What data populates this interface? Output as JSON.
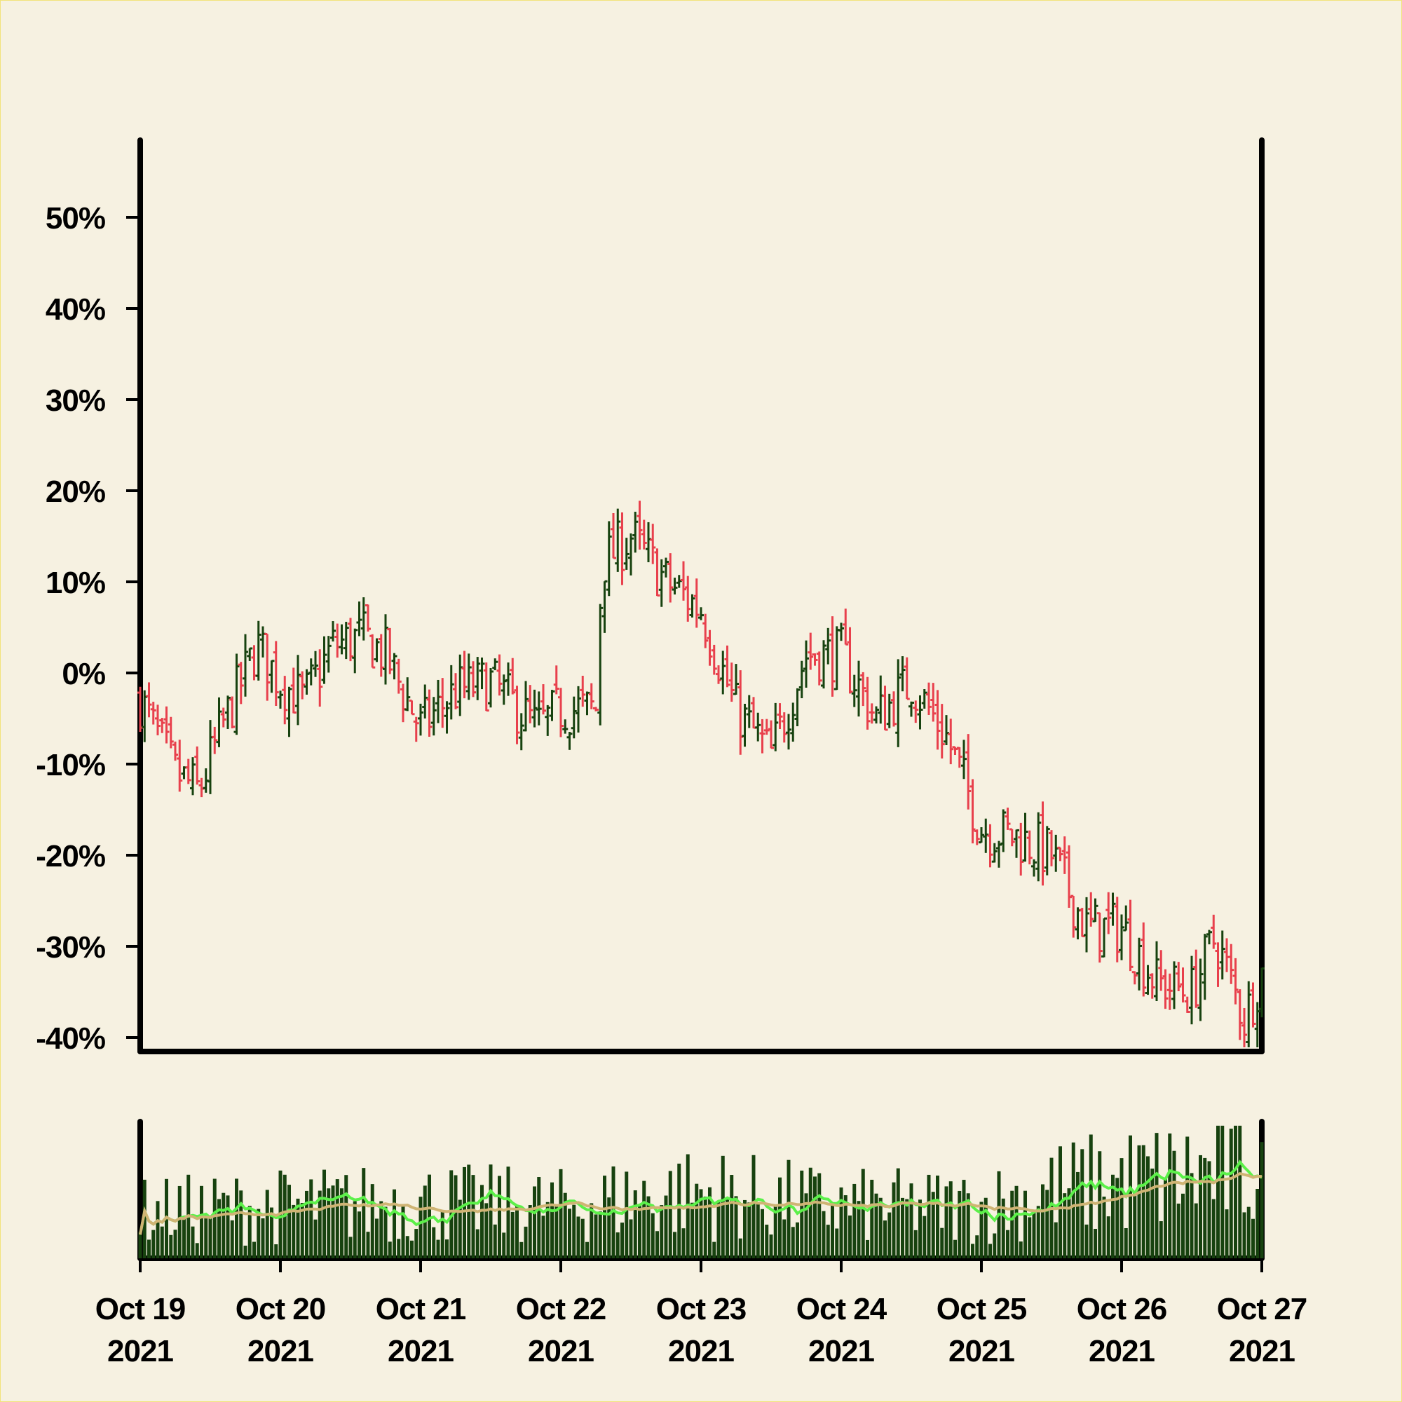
{
  "chart_data": [
    {
      "type": "ohlc",
      "title": "",
      "xlabel": "",
      "ylabel": "",
      "ylim": [
        -41.5,
        58.5
      ],
      "y_ticks": [
        "-40%",
        "-30%",
        "-20%",
        "-10%",
        "0%",
        "10%",
        "20%",
        "30%",
        "40%",
        "50%"
      ],
      "y_tick_values": [
        -40,
        -30,
        -20,
        -10,
        0,
        10,
        20,
        30,
        40,
        50
      ],
      "x_ticks": [
        {
          "date": "Oct 19",
          "year": "2021"
        },
        {
          "date": "Oct 20",
          "year": "2021"
        },
        {
          "date": "Oct 21",
          "year": "2021"
        },
        {
          "date": "Oct 22",
          "year": "2021"
        },
        {
          "date": "Oct 23",
          "year": "2021"
        },
        {
          "date": "Oct 24",
          "year": "2021"
        },
        {
          "date": "Oct 25",
          "year": "2021"
        },
        {
          "date": "Oct 26",
          "year": "2021"
        },
        {
          "date": "Oct 27",
          "year": "2021"
        }
      ],
      "xlim": [
        "2021-10-19 00:00",
        "2021-10-27 00:00"
      ],
      "bar_interval_hours": 0.75,
      "close_path": [
        [
          "2021-10-19 00:00",
          -3
        ],
        [
          "2021-10-19 06:00",
          -11
        ],
        [
          "2021-10-19 10:00",
          -13
        ],
        [
          "2021-10-19 14:00",
          -6
        ],
        [
          "2021-10-19 20:00",
          3
        ],
        [
          "2021-10-20 00:00",
          -1
        ],
        [
          "2021-10-20 04:00",
          -3
        ],
        [
          "2021-10-20 09:00",
          3
        ],
        [
          "2021-10-20 14:00",
          4
        ],
        [
          "2021-10-20 18:00",
          2
        ],
        [
          "2021-10-21 00:00",
          -6
        ],
        [
          "2021-10-21 06:00",
          -2
        ],
        [
          "2021-10-21 12:00",
          -1
        ],
        [
          "2021-10-21 20:00",
          -6
        ],
        [
          "2021-10-22 00:00",
          -4
        ],
        [
          "2021-10-22 06:00",
          -4
        ],
        [
          "2021-10-22 07:00",
          12
        ],
        [
          "2021-10-22 12:00",
          15
        ],
        [
          "2021-10-22 18:00",
          10
        ],
        [
          "2021-10-23 00:00",
          7
        ],
        [
          "2021-10-23 06:00",
          -4
        ],
        [
          "2021-10-23 12:00",
          -9
        ],
        [
          "2021-10-23 18:00",
          2
        ],
        [
          "2021-10-24 00:00",
          2
        ],
        [
          "2021-10-24 06:00",
          -5
        ],
        [
          "2021-10-24 12:00",
          -1
        ],
        [
          "2021-10-24 18:00",
          -7
        ],
        [
          "2021-10-25 00:00",
          -17
        ],
        [
          "2021-10-25 06:00",
          -18
        ],
        [
          "2021-10-25 12:00",
          -20
        ],
        [
          "2021-10-25 18:00",
          -28
        ],
        [
          "2021-10-26 00:00",
          -28
        ],
        [
          "2021-10-26 06:00",
          -34
        ],
        [
          "2021-10-26 12:00",
          -35
        ],
        [
          "2021-10-26 16:00",
          -29
        ],
        [
          "2021-10-26 21:00",
          -38
        ],
        [
          "2021-10-27 00:00",
          -33
        ]
      ],
      "up_color": "#17420f",
      "down_color": "#e8404c"
    },
    {
      "type": "bar",
      "title": "",
      "series": [
        {
          "role": "volume",
          "color": "#17420f"
        },
        {
          "role": "short moving average",
          "color": "#5cf04a"
        },
        {
          "role": "long moving average",
          "color": "#cfb474"
        }
      ],
      "relative_volume_trend": [
        [
          "2021-10-19 00:00",
          0.34
        ],
        [
          "2021-10-20 00:00",
          0.38
        ],
        [
          "2021-10-21 00:00",
          0.41
        ],
        [
          "2021-10-22 00:00",
          0.38
        ],
        [
          "2021-10-22 12:00",
          0.44
        ],
        [
          "2021-10-23 00:00",
          0.48
        ],
        [
          "2021-10-24 00:00",
          0.38
        ],
        [
          "2021-10-25 00:00",
          0.38
        ],
        [
          "2021-10-25 12:00",
          0.5
        ],
        [
          "2021-10-26 00:00",
          0.56
        ],
        [
          "2021-10-27 00:00",
          0.66
        ]
      ]
    }
  ],
  "colors": {
    "background": "#f6f1e1",
    "frame": "#f2e37a",
    "axes": "#000000",
    "up": "#17420f",
    "down": "#e8404c",
    "volume": "#17420f",
    "ma_short": "#5cf04a",
    "ma_long": "#cfb474"
  }
}
